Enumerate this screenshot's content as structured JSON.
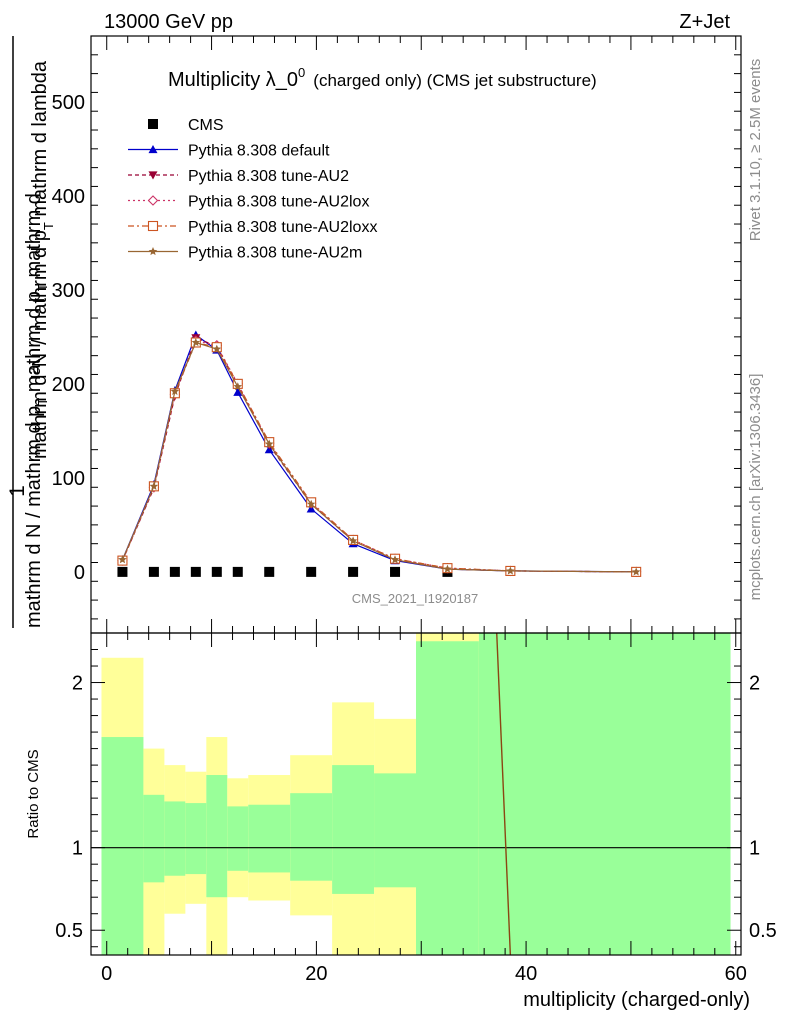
{
  "header": {
    "left": "13000 GeV pp",
    "right": "Z+Jet"
  },
  "side_labels": {
    "rivet": "Rivet 3.1.10, ≥ 2.5M events",
    "mcplots": "mcplots.cern.ch [arXiv:1306.3436]"
  },
  "chart_data": [
    {
      "type": "line",
      "title": "Multiplicity λ_0",
      "title_superscript": "0",
      "subtitle": "(charged only) (CMS jet substructure)",
      "watermark": "CMS_2021_I1920187",
      "ylabel_fraction_one": "1",
      "ylabel_lower": "mathrm d N / mathrm d p_T mathrm d p_T",
      "ylabel_upper": "mathrm d^{2}N / mathrm d p_T mathrm d lambda",
      "ylabel_upper_parts": [
        "mathrm d",
        "2",
        "N"
      ],
      "ylabel_upper_rest": "mathrm d p",
      "ylabel_upper_tail": " mathrm d lambda",
      "ylabel_lower_parts": [
        "mathrm d N / mathrm d p",
        " mathrm d p",
        " mathrm d"
      ],
      "ylabel_sub": "T",
      "xlim": [
        -1.5,
        60.5
      ],
      "ylim": [
        -65,
        570
      ],
      "yticks": [
        0,
        100,
        200,
        300,
        400,
        500
      ],
      "legend": {
        "position": "top-left",
        "entries": [
          {
            "label": "CMS",
            "marker": "square",
            "color": "#000000"
          },
          {
            "label": "Pythia 8.308 default",
            "marker": "triangle-up",
            "color": "#0000cc"
          },
          {
            "label": "Pythia 8.308 tune-AU2",
            "marker": "triangle-down",
            "color": "#990033"
          },
          {
            "label": "Pythia 8.308 tune-AU2lox",
            "marker": "diamond-open",
            "color": "#cc3366"
          },
          {
            "label": "Pythia 8.308 tune-AU2loxx",
            "marker": "square-open",
            "color": "#cc5522"
          },
          {
            "label": "Pythia 8.308 tune-AU2m",
            "marker": "star",
            "color": "#996633"
          }
        ]
      },
      "x": [
        1.5,
        4.5,
        6.5,
        8.5,
        10.5,
        12.5,
        15.5,
        19.5,
        23.5,
        27.5,
        32.5,
        38.5,
        50.5
      ],
      "series": [
        {
          "name": "CMS",
          "values": [
            0,
            0,
            0,
            0,
            0,
            0,
            0,
            0,
            0,
            0,
            0,
            null,
            null
          ]
        },
        {
          "name": "Pythia 8.308 default",
          "values": [
            13,
            93,
            193,
            252,
            236,
            191,
            130,
            67,
            30,
            12,
            3,
            1,
            0
          ]
        },
        {
          "name": "Pythia 8.308 tune-AU2",
          "values": [
            12,
            89,
            187,
            249,
            240,
            199,
            135,
            72,
            33,
            13,
            3,
            1,
            0
          ]
        },
        {
          "name": "Pythia 8.308 tune-AU2lox",
          "values": [
            12,
            90,
            189,
            246,
            241,
            200,
            137,
            73,
            34,
            14,
            4,
            1,
            0
          ]
        },
        {
          "name": "Pythia 8.308 tune-AU2loxx",
          "values": [
            12,
            91,
            190,
            244,
            239,
            200,
            138,
            74,
            34,
            14,
            4,
            1,
            0
          ]
        },
        {
          "name": "Pythia 8.308 tune-AU2m",
          "values": [
            13,
            91,
            192,
            244,
            237,
            197,
            136,
            72,
            33,
            13,
            3,
            1,
            0
          ]
        }
      ]
    },
    {
      "type": "area",
      "ylabel": "Ratio to CMS",
      "xlabel": "multiplicity (charged-only)",
      "xlim": [
        -1.5,
        60.5
      ],
      "ylim": [
        0.35,
        2.3
      ],
      "xticks": [
        0,
        20,
        40,
        60
      ],
      "yticks": [
        0.5,
        1,
        2
      ],
      "ytick_labels": [
        "0.5",
        "1",
        "2"
      ],
      "bins": [
        {
          "lo": -0.5,
          "hi": 3.5,
          "g_lo": 0.35,
          "g_hi": 1.67,
          "y_lo": 0.35,
          "y_hi": 2.15
        },
        {
          "lo": 3.5,
          "hi": 5.5,
          "g_lo": 0.79,
          "g_hi": 1.32,
          "y_lo": 0.35,
          "y_hi": 1.6
        },
        {
          "lo": 5.5,
          "hi": 7.5,
          "g_lo": 0.83,
          "g_hi": 1.28,
          "y_lo": 0.6,
          "y_hi": 1.5
        },
        {
          "lo": 7.5,
          "hi": 9.5,
          "g_lo": 0.84,
          "g_hi": 1.27,
          "y_lo": 0.66,
          "y_hi": 1.46
        },
        {
          "lo": 9.5,
          "hi": 11.5,
          "g_lo": 0.7,
          "g_hi": 1.44,
          "y_lo": 0.35,
          "y_hi": 1.67
        },
        {
          "lo": 11.5,
          "hi": 13.5,
          "g_lo": 0.86,
          "g_hi": 1.25,
          "y_lo": 0.7,
          "y_hi": 1.42
        },
        {
          "lo": 13.5,
          "hi": 17.5,
          "g_lo": 0.85,
          "g_hi": 1.26,
          "y_lo": 0.68,
          "y_hi": 1.44
        },
        {
          "lo": 17.5,
          "hi": 21.5,
          "g_lo": 0.8,
          "g_hi": 1.33,
          "y_lo": 0.59,
          "y_hi": 1.56
        },
        {
          "lo": 21.5,
          "hi": 25.5,
          "g_lo": 0.72,
          "g_hi": 1.5,
          "y_lo": 0.35,
          "y_hi": 1.88
        },
        {
          "lo": 25.5,
          "hi": 29.5,
          "g_lo": 0.76,
          "g_hi": 1.45,
          "y_lo": 0.35,
          "y_hi": 1.78
        },
        {
          "lo": 29.5,
          "hi": 35.5,
          "g_lo": 0.35,
          "g_hi": 2.25,
          "y_lo": 0.35,
          "y_hi": 2.3
        },
        {
          "lo": 35.5,
          "hi": 59.5,
          "g_lo": 0.35,
          "g_hi": 2.3,
          "y_lo": 0.35,
          "y_hi": 2.3
        }
      ],
      "mc_line": {
        "x": [
          37.2,
          38.5
        ],
        "y": [
          2.3,
          0.35
        ],
        "color": "#8b4513"
      }
    }
  ]
}
